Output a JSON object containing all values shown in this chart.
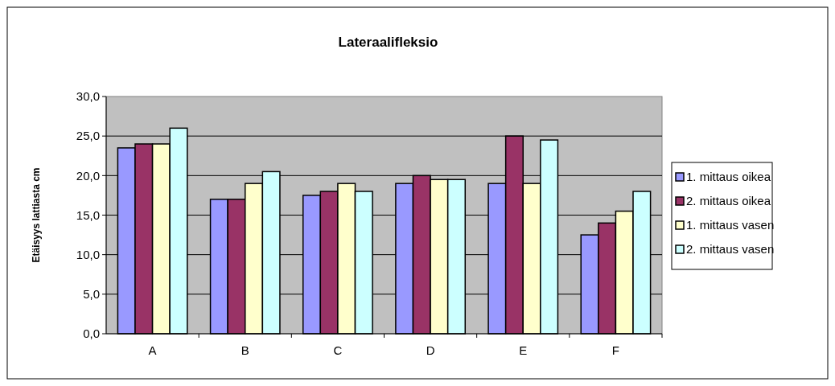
{
  "chart_data": {
    "type": "bar",
    "title": "Lateraalifleksio",
    "ylabel": "Etäisyys lattiasta cm",
    "categories": [
      "A",
      "B",
      "C",
      "D",
      "E",
      "F"
    ],
    "series": [
      {
        "name": "1. mittaus oikea",
        "color": "#9999ff",
        "values": [
          23.5,
          17,
          17.5,
          19,
          19,
          12.5
        ]
      },
      {
        "name": "2. mittaus oikea",
        "color": "#993366",
        "values": [
          24,
          17,
          18,
          20,
          25,
          14
        ]
      },
      {
        "name": "1. mittaus vasen",
        "color": "#ffffcc",
        "values": [
          24,
          19,
          19,
          19.5,
          19,
          15.5
        ]
      },
      {
        "name": "2. mittaus vasen",
        "color": "#ccffff",
        "values": [
          26,
          20.5,
          18,
          19.5,
          24.5,
          18
        ]
      }
    ],
    "ylim": [
      0,
      30
    ],
    "yticks": [
      {
        "value": 0,
        "label": "0,0"
      },
      {
        "value": 5,
        "label": "5,0"
      },
      {
        "value": 10,
        "label": "10,0"
      },
      {
        "value": 15,
        "label": "15,0"
      },
      {
        "value": 20,
        "label": "20,0"
      },
      {
        "value": 25,
        "label": "25,0"
      },
      {
        "value": 30,
        "label": "30,0"
      }
    ],
    "grid": "y",
    "legend": "right"
  }
}
